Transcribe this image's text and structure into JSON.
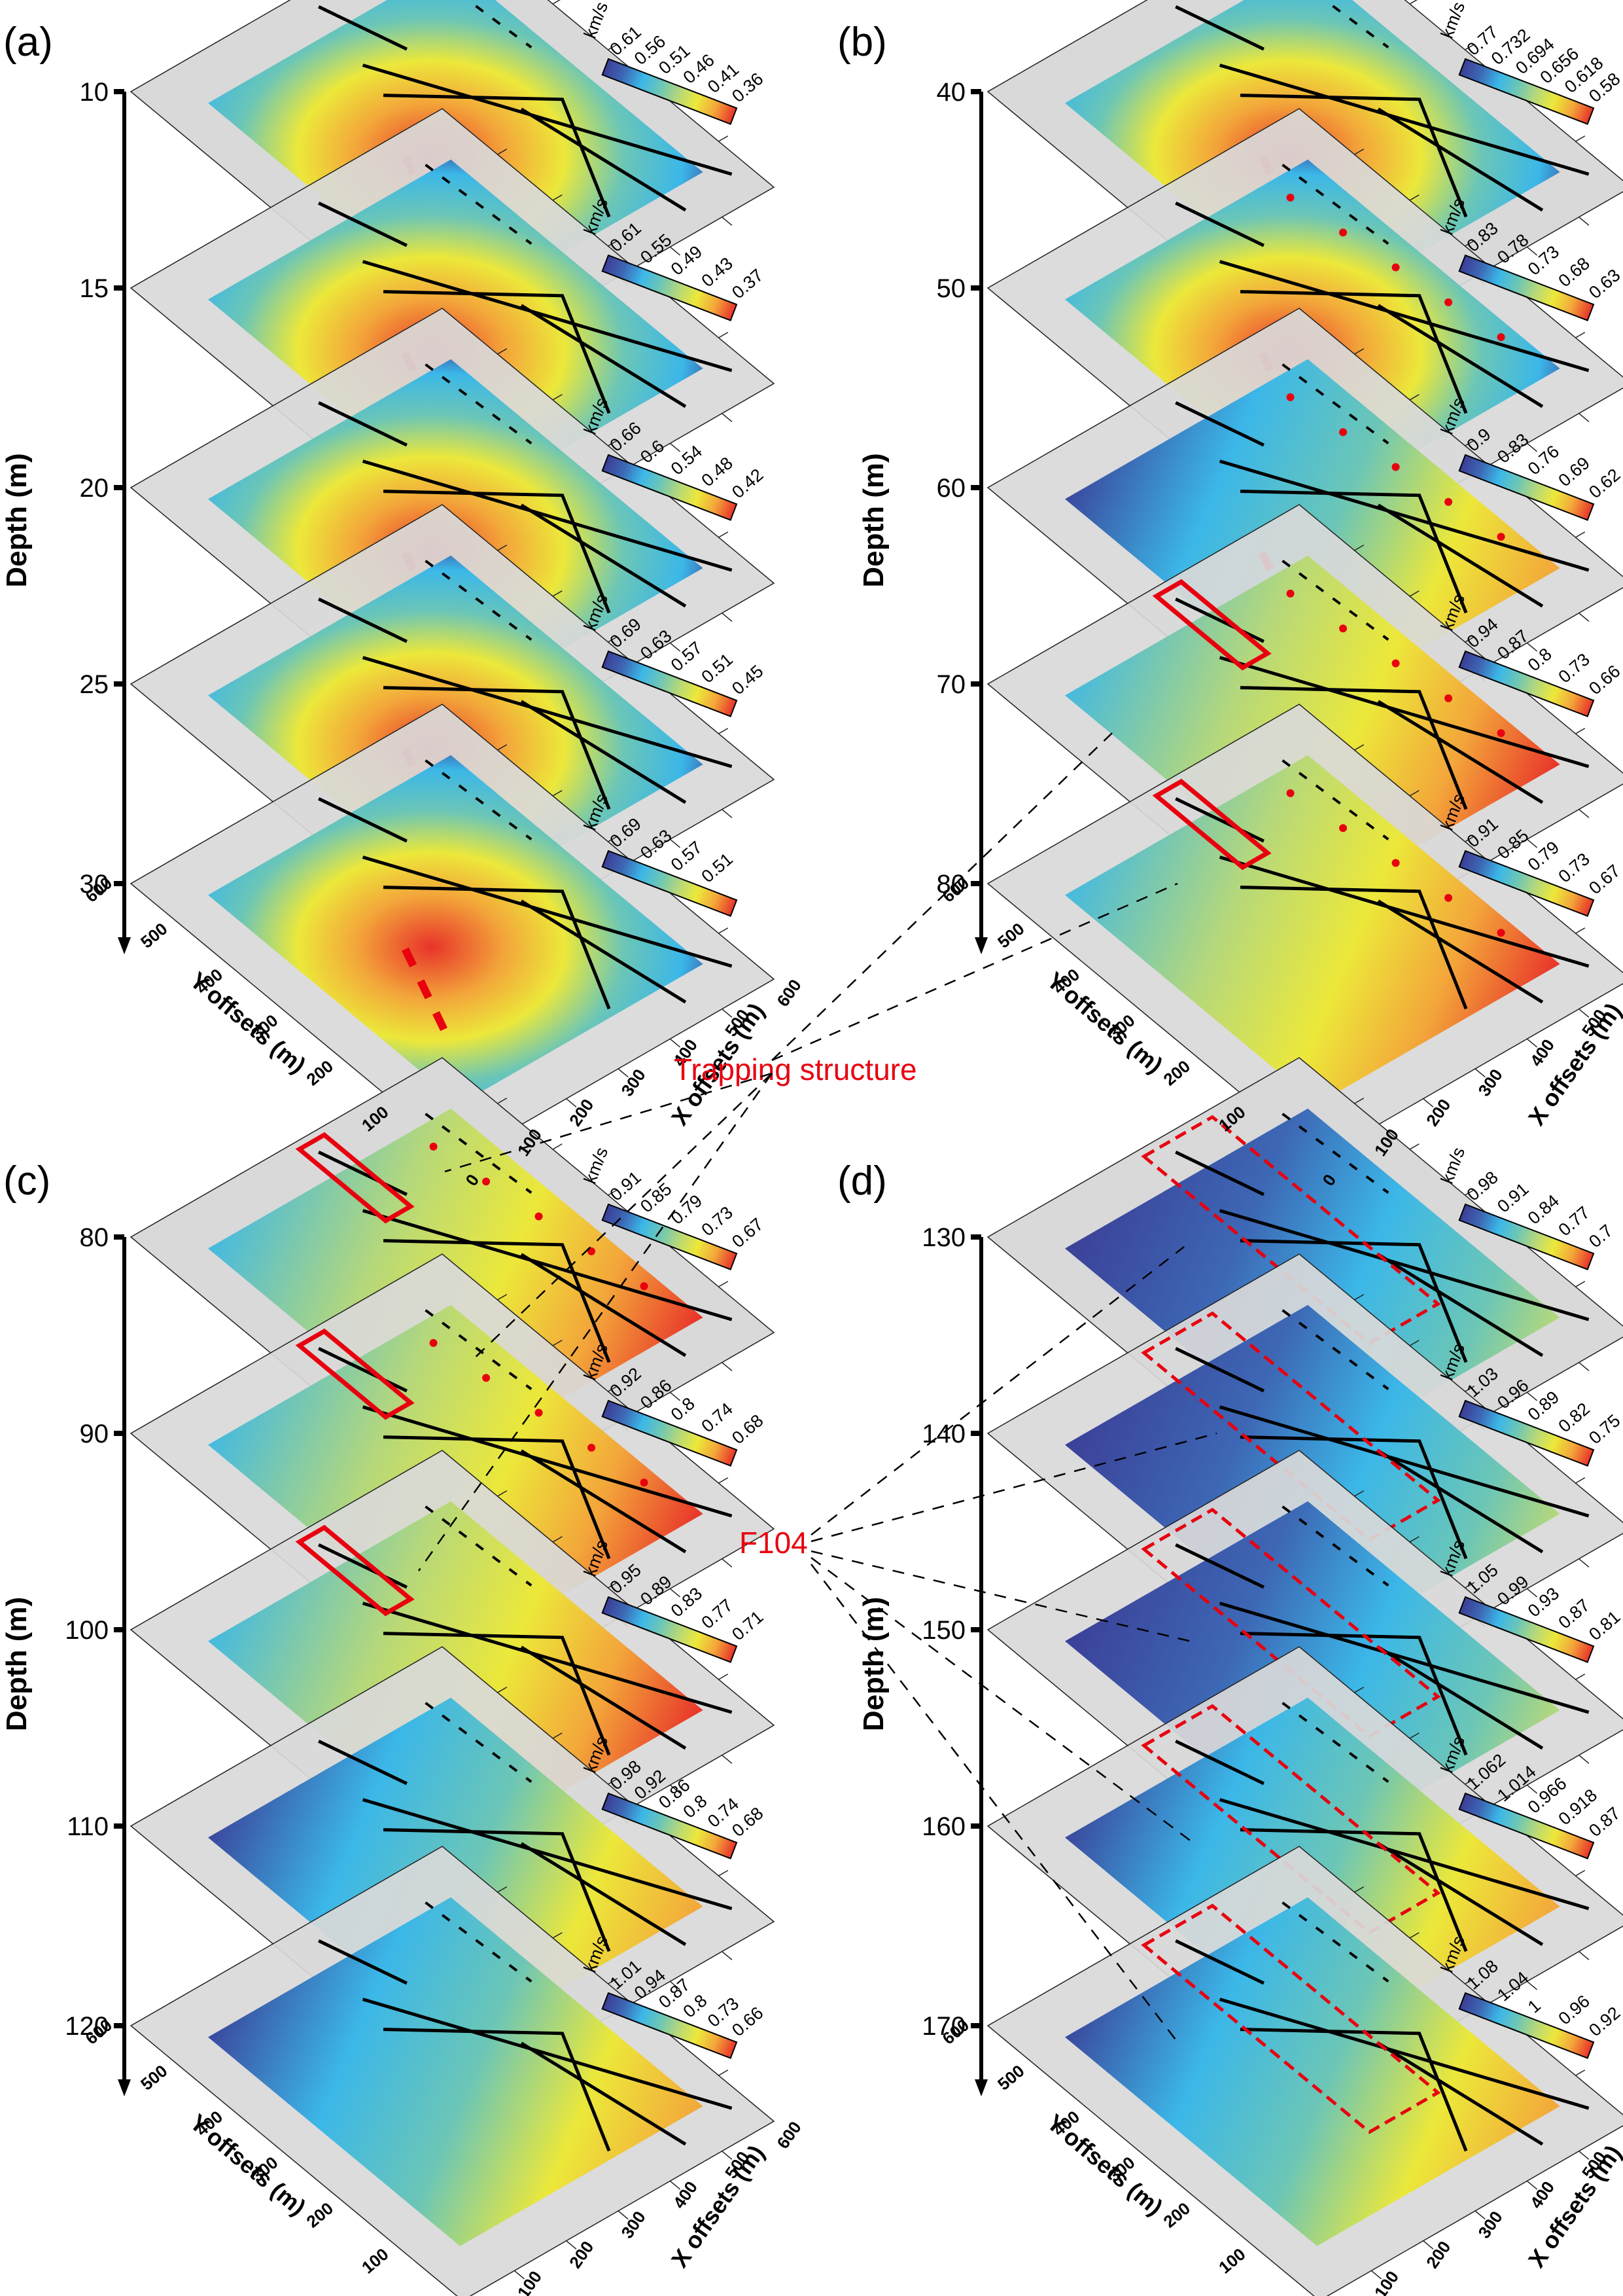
{
  "chart_data": {
    "type": "heatmap",
    "title": "",
    "description": "Stacked 3D depth slices of shear-wave velocity (km/s) with fault traces",
    "colormap": [
      "#3b3d96",
      "#3d68b5",
      "#3bb7e8",
      "#6cc6b6",
      "#b6d87a",
      "#ece83a",
      "#f3a63a",
      "#e8332a"
    ],
    "depth_axis_label": "Depth (m)",
    "x_axis": {
      "label": "X offsets (m)",
      "ticks": [
        "0",
        "100",
        "200",
        "300",
        "400",
        "500",
        "600"
      ],
      "range": [
        0,
        600
      ]
    },
    "y_axis": {
      "label": "Y offsets (m)",
      "ticks": [
        "0",
        "100",
        "200",
        "300",
        "400",
        "500",
        "600"
      ],
      "range": [
        0,
        600
      ]
    },
    "legend_unit": "km/s",
    "panels": [
      {
        "label": "(a)",
        "depths": [
          10,
          15,
          20,
          25,
          30
        ],
        "slices": [
          {
            "depth": 10,
            "legend": [
              "0.61",
              "0.56",
              "0.51",
              "0.46",
              "0.41",
              "0.36"
            ],
            "anomaly": "low-velocity-center",
            "marks": "red-dashed-line"
          },
          {
            "depth": 15,
            "legend": [
              "0.61",
              "0.55",
              "0.49",
              "0.43",
              "0.37"
            ],
            "anomaly": "low-velocity-center",
            "marks": "red-dashed-line"
          },
          {
            "depth": 20,
            "legend": [
              "0.66",
              "0.6",
              "0.54",
              "0.48",
              "0.42"
            ],
            "anomaly": "low-velocity-center",
            "marks": "red-dashed-line"
          },
          {
            "depth": 25,
            "legend": [
              "0.69",
              "0.63",
              "0.57",
              "0.51",
              "0.45"
            ],
            "anomaly": "low-velocity-center",
            "marks": "red-dashed-line"
          },
          {
            "depth": 30,
            "legend": [
              "0.69",
              "0.63",
              "0.57",
              "0.51"
            ],
            "anomaly": "low-velocity-center",
            "marks": "red-dashed-line"
          }
        ]
      },
      {
        "label": "(b)",
        "depths": [
          40,
          50,
          60,
          70,
          80
        ],
        "slices": [
          {
            "depth": 40,
            "legend": [
              "0.77",
              "0.732",
              "0.694",
              "0.656",
              "0.618",
              "0.58"
            ],
            "anomaly": "low-velocity-center",
            "marks": "red-dashed-line"
          },
          {
            "depth": 50,
            "legend": [
              "0.83",
              "0.78",
              "0.73",
              "0.68",
              "0.63"
            ],
            "anomaly": "low-velocity-center",
            "marks": "red-dashed-line+red-dots"
          },
          {
            "depth": 60,
            "legend": [
              "0.9",
              "0.83",
              "0.76",
              "0.69",
              "0.62"
            ],
            "anomaly": "mixed",
            "marks": "red-dashed-line+red-dots"
          },
          {
            "depth": 70,
            "legend": [
              "0.94",
              "0.87",
              "0.8",
              "0.73",
              "0.66"
            ],
            "anomaly": "low-velocity-right",
            "marks": "red-box+red-dots"
          },
          {
            "depth": 80,
            "legend": [
              "0.91",
              "0.85",
              "0.79",
              "0.73",
              "0.67"
            ],
            "anomaly": "low-velocity-right",
            "marks": "red-box+red-dots"
          }
        ]
      },
      {
        "label": "(c)",
        "depths": [
          80,
          90,
          100,
          110,
          120
        ],
        "slices": [
          {
            "depth": 80,
            "legend": [
              "0.91",
              "0.85",
              "0.79",
              "0.73",
              "0.67"
            ],
            "anomaly": "low-velocity-right",
            "marks": "red-box+red-dots"
          },
          {
            "depth": 90,
            "legend": [
              "0.92",
              "0.86",
              "0.8",
              "0.74",
              "0.68"
            ],
            "anomaly": "low-velocity-right",
            "marks": "red-box+red-dots"
          },
          {
            "depth": 100,
            "legend": [
              "0.95",
              "0.89",
              "0.83",
              "0.77",
              "0.71"
            ],
            "anomaly": "low-velocity-right",
            "marks": "red-box"
          },
          {
            "depth": 110,
            "legend": [
              "0.98",
              "0.92",
              "0.86",
              "0.8",
              "0.74",
              "0.68"
            ],
            "anomaly": "mixed",
            "marks": "none"
          },
          {
            "depth": 120,
            "legend": [
              "1.01",
              "0.94",
              "0.87",
              "0.8",
              "0.73",
              "0.66"
            ],
            "anomaly": "mixed",
            "marks": "none"
          }
        ]
      },
      {
        "label": "(d)",
        "depths": [
          130,
          140,
          150,
          160,
          170
        ],
        "slices": [
          {
            "depth": 130,
            "legend": [
              "0.98",
              "0.91",
              "0.84",
              "0.77",
              "0.7"
            ],
            "anomaly": "high-velocity",
            "marks": "red-dashed-box"
          },
          {
            "depth": 140,
            "legend": [
              "1.03",
              "0.96",
              "0.89",
              "0.82",
              "0.75"
            ],
            "anomaly": "high-velocity",
            "marks": "red-dashed-box"
          },
          {
            "depth": 150,
            "legend": [
              "1.05",
              "0.99",
              "0.93",
              "0.87",
              "0.81"
            ],
            "anomaly": "high-velocity",
            "marks": "red-dashed-box"
          },
          {
            "depth": 160,
            "legend": [
              "1.062",
              "1.014",
              "0.966",
              "0.918",
              "0.87"
            ],
            "anomaly": "mixed",
            "marks": "red-dashed-box"
          },
          {
            "depth": 170,
            "legend": [
              "1.08",
              "1.04",
              "1",
              "0.96",
              "0.92"
            ],
            "anomaly": "mixed",
            "marks": "red-dashed-box"
          }
        ]
      }
    ],
    "annotations": [
      {
        "text": "Trapping structure",
        "color": "#e8000f",
        "points_to": "red boxes in (b) and (c)"
      },
      {
        "text": "F104",
        "color": "#e8000f",
        "points_to": "red dashed boxes in (d)"
      }
    ]
  }
}
